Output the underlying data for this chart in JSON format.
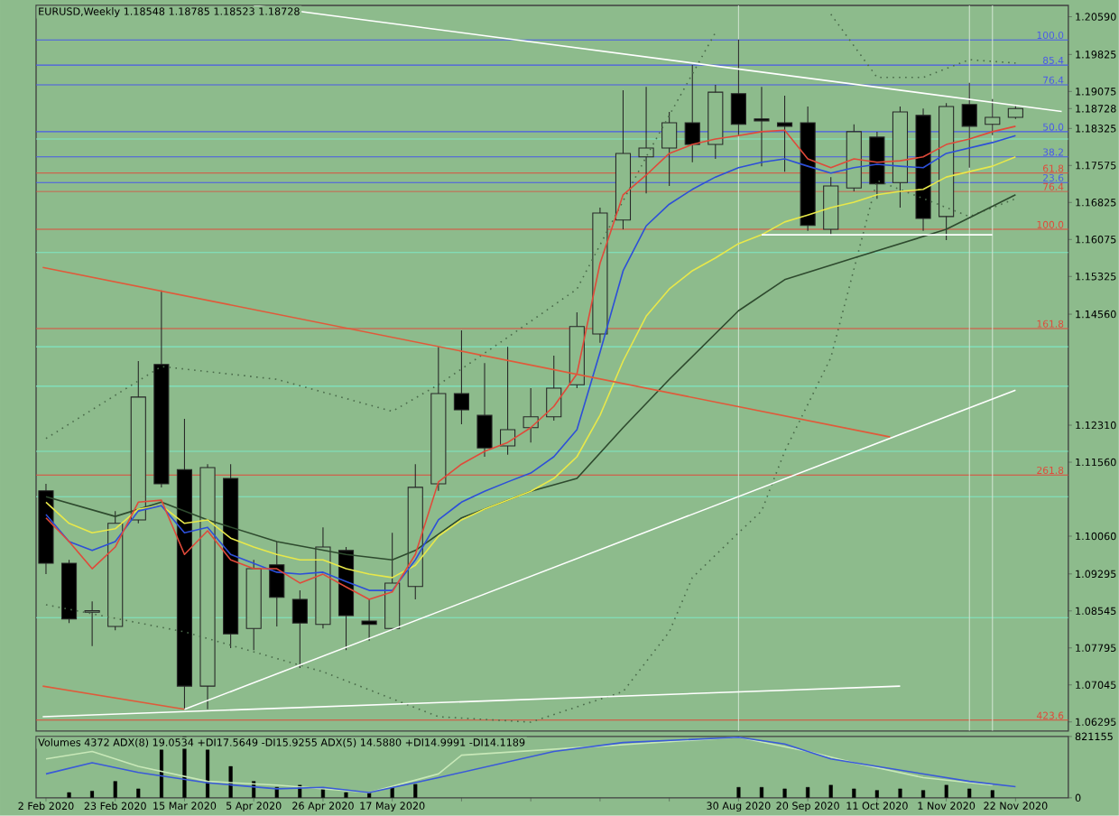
{
  "chart_data": [
    {
      "type": "candlestick",
      "title": "EURUSD,Weekly 1.18548 1.18785 1.18523 1.18728",
      "x": [
        "2020-02-02",
        "2020-02-09",
        "2020-02-16",
        "2020-02-23",
        "2020-03-01",
        "2020-03-08",
        "2020-03-15",
        "2020-03-22",
        "2020-03-29",
        "2020-04-05",
        "2020-04-12",
        "2020-04-19",
        "2020-04-26",
        "2020-05-03",
        "2020-05-10",
        "2020-05-17",
        "2020-05-24",
        "2020-05-31",
        "2020-06-07",
        "2020-06-14",
        "2020-06-21",
        "2020-06-28",
        "2020-07-05",
        "2020-07-12",
        "2020-07-19",
        "2020-07-26",
        "2020-08-02",
        "2020-08-09",
        "2020-08-16",
        "2020-08-23",
        "2020-08-30",
        "2020-09-06",
        "2020-09-13",
        "2020-09-20",
        "2020-09-27",
        "2020-10-04",
        "2020-10-11",
        "2020-10-18",
        "2020-10-25",
        "2020-11-01",
        "2020-11-08",
        "2020-11-15",
        "2020-11-22"
      ],
      "ohlc": [
        [
          1.1098,
          1.1112,
          1.0929,
          1.0951
        ],
        [
          1.0951,
          1.0958,
          1.083,
          1.0838
        ],
        [
          1.0852,
          1.0874,
          1.0783,
          1.0855
        ],
        [
          1.0823,
          1.1057,
          1.0815,
          1.1032
        ],
        [
          1.1039,
          1.1361,
          1.1032,
          1.1288
        ],
        [
          1.1354,
          1.1504,
          1.1105,
          1.1112
        ],
        [
          1.1141,
          1.1244,
          1.0655,
          1.0702
        ],
        [
          1.0702,
          1.1152,
          1.0655,
          1.1145
        ],
        [
          1.1123,
          1.1152,
          1.0779,
          1.0808
        ],
        [
          1.0819,
          1.0958,
          1.0775,
          1.094
        ],
        [
          1.0948,
          1.0995,
          1.0823,
          1.0882
        ],
        [
          1.0878,
          1.0896,
          1.0739,
          1.083
        ],
        [
          1.0827,
          1.1024,
          1.0819,
          1.0984
        ],
        [
          1.0977,
          1.0984,
          1.0775,
          1.0845
        ],
        [
          1.0834,
          1.0878,
          1.0794,
          1.0827
        ],
        [
          1.0819,
          1.1013,
          1.0815,
          1.0911
        ],
        [
          1.0904,
          1.1152,
          1.0878,
          1.1105
        ],
        [
          1.1112,
          1.139,
          1.1098,
          1.1295
        ],
        [
          1.1295,
          1.1423,
          1.1233,
          1.1262
        ],
        [
          1.1251,
          1.1357,
          1.1167,
          1.1185
        ],
        [
          1.1189,
          1.139,
          1.1171,
          1.1222
        ],
        [
          1.1226,
          1.1306,
          1.1196,
          1.1248
        ],
        [
          1.1248,
          1.1372,
          1.124,
          1.1306
        ],
        [
          1.1313,
          1.146,
          1.1306,
          1.1431
        ],
        [
          1.1416,
          1.1672,
          1.1398,
          1.1661
        ],
        [
          1.1647,
          1.191,
          1.1628,
          1.1782
        ],
        [
          1.1775,
          1.1917,
          1.1701,
          1.1793
        ],
        [
          1.1793,
          1.1866,
          1.1716,
          1.1844
        ],
        [
          1.1844,
          1.1961,
          1.1764,
          1.18
        ],
        [
          1.18,
          1.1921,
          1.1771,
          1.1906
        ],
        [
          1.1903,
          1.2013,
          1.1819,
          1.1841
        ],
        [
          1.1852,
          1.1917,
          1.1756,
          1.1848
        ],
        [
          1.1844,
          1.1899,
          1.1745,
          1.1837
        ],
        [
          1.1844,
          1.1877,
          1.1625,
          1.1636
        ],
        [
          1.1628,
          1.1734,
          1.1617,
          1.1716
        ],
        [
          1.1712,
          1.1841,
          1.1705,
          1.1826
        ],
        [
          1.1815,
          1.1826,
          1.169,
          1.172
        ],
        [
          1.1723,
          1.1877,
          1.1672,
          1.1866
        ],
        [
          1.1859,
          1.1873,
          1.1625,
          1.165
        ],
        [
          1.1654,
          1.1884,
          1.1606,
          1.1877
        ],
        [
          1.1881,
          1.1925,
          1.1753,
          1.1837
        ],
        [
          1.1841,
          1.1892,
          1.1819,
          1.1855
        ],
        [
          1.1855,
          1.1879,
          1.1852,
          1.1873
        ]
      ],
      "xlim": [
        "2020-01-30",
        "2020-12-08"
      ],
      "ylim": [
        1.0611,
        1.2082
      ],
      "yticks": [
        {
          "value": 1.2059,
          "label": "1.20590"
        },
        1.19825,
        1.19075,
        1.18325,
        1.17575,
        1.16825,
        1.16075,
        1.15325,
        {
          "value": 1.1456,
          "label": "1.14560"
        },
        {
          "value": 1.1231,
          "label": "1.12310"
        },
        {
          "value": 1.1156,
          "label": "1.11560"
        },
        {
          "value": 1.1006,
          "label": "1.10060"
        },
        1.09295,
        1.08545,
        1.07795,
        1.07045,
        1.06295,
        1.18728
      ],
      "tick_labels": "y",
      "series": [
        {
          "type": "line",
          "color": "#4a6a4a",
          "line_style": "dotted",
          "x": [
            "2020-02-02",
            "2020-03-08",
            "2020-04-12",
            "2020-05-17",
            "2020-05-31",
            "2020-06-21",
            "2020-07-12",
            "2020-08-02",
            "2020-08-16",
            "2020-08-23",
            "2020-09-06",
            "2020-09-27",
            "2020-10-11",
            "2020-10-25",
            "2020-11-08",
            "2020-11-22"
          ],
          "values": [
            1.1204,
            1.135,
            1.1324,
            1.1259,
            1.1313,
            1.1409,
            1.1507,
            1.1775,
            1.1943,
            1.2027,
            null,
            1.2064,
            1.1936,
            1.1936,
            1.1972,
            1.1965
          ]
        },
        {
          "type": "line",
          "color": "#4a6a4a",
          "line_style": "dotted",
          "x": [
            "2020-02-02",
            "2020-03-15",
            "2020-04-26",
            "2020-05-31",
            "2020-06-28",
            "2020-07-26",
            "2020-08-09",
            "2020-08-16",
            "2020-08-30",
            "2020-09-06",
            "2020-09-13",
            "2020-09-27",
            "2020-10-11",
            "2020-11-08",
            "2020-11-22"
          ],
          "values": [
            1.0867,
            1.0812,
            1.0731,
            1.064,
            1.0629,
            1.0691,
            1.0812,
            1.0922,
            1.1013,
            1.1057,
            1.1178,
            1.1368,
            1.1727,
            1.1654,
            1.169
          ]
        },
        {
          "type": "line",
          "color": "#2e4a2e",
          "x": [
            "2020-02-02",
            "2020-02-23",
            "2020-03-08",
            "2020-03-22",
            "2020-04-12",
            "2020-05-03",
            "2020-05-17",
            "2020-05-24",
            "2020-06-07",
            "2020-06-28",
            "2020-07-12",
            "2020-07-26",
            "2020-08-09",
            "2020-08-30",
            "2020-09-13",
            "2020-10-04",
            "2020-10-18",
            "2020-11-01",
            "2020-11-22"
          ],
          "values": [
            1.1086,
            1.1046,
            1.1075,
            1.1039,
            1.0995,
            1.0969,
            1.0958,
            1.0977,
            1.1043,
            1.1097,
            1.1123,
            1.1226,
            1.1324,
            1.1463,
            1.1526,
            1.157,
            1.1599,
            1.1628,
            1.1698
          ]
        },
        {
          "type": "line",
          "color": "#e8e84a",
          "values": [
            1.1075,
            1.1032,
            1.1013,
            1.1021,
            1.1061,
            1.1068,
            1.1032,
            1.1039,
            1.1002,
            1.0984,
            1.0969,
            1.0958,
            1.0958,
            1.094,
            1.0929,
            1.0922,
            1.0947,
            1.1006,
            1.1039,
            1.1061,
            1.1079,
            1.1097,
            1.1123,
            1.1167,
            1.1251,
            1.1361,
            1.1452,
            1.1507,
            1.1544,
            1.157,
            1.1599,
            1.1617,
            1.1643,
            1.1657,
            1.1672,
            1.1683,
            1.1698,
            1.1705,
            1.1709,
            1.1734,
            1.1745,
            1.1756,
            1.1775
          ]
        },
        {
          "type": "line",
          "color": "#2d4fd8",
          "values": [
            1.105,
            1.0995,
            1.0977,
            1.0995,
            1.1057,
            1.1068,
            1.1013,
            1.1024,
            1.0969,
            1.0951,
            1.0933,
            1.0929,
            1.0933,
            1.0914,
            1.0896,
            1.0896,
            1.0958,
            1.1039,
            1.1075,
            1.1097,
            1.1116,
            1.1134,
            1.1167,
            1.1222,
            1.1379,
            1.1544,
            1.1635,
            1.1679,
            1.1709,
            1.1734,
            1.1753,
            1.1764,
            1.1771,
            1.1756,
            1.1742,
            1.1753,
            1.176,
            1.1756,
            1.1753,
            1.1782,
            1.1793,
            1.1804,
            1.1818
          ]
        },
        {
          "type": "line",
          "color": "#e04a3a",
          "values": [
            1.1043,
            1.0995,
            1.094,
            1.0984,
            1.1075,
            1.1079,
            1.0969,
            1.1017,
            1.0958,
            1.094,
            1.094,
            1.0911,
            1.0929,
            1.0903,
            1.0878,
            1.0893,
            1.0969,
            1.1116,
            1.1152,
            1.1178,
            1.1196,
            1.1226,
            1.1269,
            1.1335,
            1.1559,
            1.1698,
            1.1738,
            1.1782,
            1.18,
            1.1811,
            1.1818,
            1.1826,
            1.1829,
            1.1771,
            1.1753,
            1.1771,
            1.1764,
            1.1767,
            1.1775,
            1.18,
            1.1811,
            1.1826,
            1.1837
          ]
        },
        {
          "type": "line",
          "color": "#ffffff",
          "x": [
            "2020-04-05",
            "2020-12-06"
          ],
          "values": [
            1.2082,
            1.1867
          ]
        },
        {
          "type": "line",
          "color": "#e05a3a",
          "x": [
            "2020-02-01",
            "2020-10-15"
          ],
          "values": [
            1.1551,
            1.1207
          ]
        },
        {
          "type": "line",
          "color": "#e05a3a",
          "x": [
            "2020-02-01",
            "2020-03-15"
          ],
          "values": [
            1.0702,
            1.0655
          ]
        },
        {
          "type": "line",
          "color": "#ffffff",
          "x": [
            "2020-03-15",
            "2020-11-22"
          ],
          "values": [
            1.0655,
            1.1302
          ]
        },
        {
          "type": "line",
          "color": "#ffffff",
          "x": [
            "2020-02-01",
            "2020-10-18"
          ],
          "values": [
            1.064,
            1.0702
          ]
        },
        {
          "type": "line",
          "color": "#ffffff",
          "x": [
            "2020-09-06",
            "2020-11-15"
          ],
          "values": [
            1.1617,
            1.1617
          ]
        }
      ],
      "ref_lines": [
        {
          "axis": "y",
          "value": 1.2012,
          "color": "#4a5ae8"
        },
        {
          "axis": "y",
          "value": 1.1961,
          "color": "#4a5ae8"
        },
        {
          "axis": "y",
          "value": 1.1921,
          "color": "#4a5ae8"
        },
        {
          "axis": "y",
          "value": 1.1826,
          "color": "#4a5ae8"
        },
        {
          "axis": "y",
          "value": 1.1775,
          "color": "#4a5ae8"
        },
        {
          "axis": "y",
          "value": 1.1723,
          "color": "#4a5ae8"
        },
        {
          "axis": "y",
          "value": 1.1742,
          "color": "#e04a3a"
        },
        {
          "axis": "y",
          "value": 1.1705,
          "color": "#e04a3a"
        },
        {
          "axis": "y",
          "value": 1.1628,
          "color": "#e04a3a"
        },
        {
          "axis": "y",
          "value": 1.1427,
          "color": "#e04a3a"
        },
        {
          "axis": "y",
          "value": 1.113,
          "color": "#e04a3a"
        },
        {
          "axis": "y",
          "value": 1.0633,
          "color": "#e04a3a"
        },
        {
          "axis": "y",
          "value": 1.1811,
          "color": "#7fe7c4"
        },
        {
          "axis": "y",
          "value": 1.1581,
          "color": "#7fe7c4"
        },
        {
          "axis": "y",
          "value": 1.139,
          "color": "#7fe7c4"
        },
        {
          "axis": "y",
          "value": 1.131,
          "color": "#7fe7c4"
        },
        {
          "axis": "y",
          "value": 1.1178,
          "color": "#7fe7c4"
        },
        {
          "axis": "y",
          "value": 1.1086,
          "color": "#7fe7c4"
        },
        {
          "axis": "y",
          "value": 1.0841,
          "color": "#7fe7c4"
        },
        {
          "axis": "x",
          "value": "2020-08-30",
          "color": "#d0e4d0"
        },
        {
          "axis": "x",
          "value": "2020-11-08",
          "color": "#d0e4d0"
        },
        {
          "axis": "x",
          "value": "2020-11-15",
          "color": "#d0e4d0"
        }
      ],
      "annotations": [
        {
          "text": "100.0",
          "x": "2020-12-07",
          "y": 1.2012
        },
        {
          "text": "85.4",
          "x": "2020-12-07",
          "y": 1.1961
        },
        {
          "text": "76.4",
          "x": "2020-12-07",
          "y": 1.1921
        },
        {
          "text": "50.0",
          "x": "2020-12-07",
          "y": 1.1826
        },
        {
          "text": "38.2",
          "x": "2020-12-07",
          "y": 1.1775
        },
        {
          "text": "23.6",
          "x": "2020-12-07",
          "y": 1.1723
        },
        {
          "text": "61.8",
          "x": "2020-12-07",
          "y": 1.1742
        },
        {
          "text": "76.4",
          "x": "2020-12-07",
          "y": 1.1705
        },
        {
          "text": "100.0",
          "x": "2020-12-07",
          "y": 1.1628
        },
        {
          "text": "161.8",
          "x": "2020-12-07",
          "y": 1.1427
        },
        {
          "text": "261.8",
          "x": "2020-12-07",
          "y": 1.113
        },
        {
          "text": "423.6",
          "x": "2020-12-07",
          "y": 1.0633
        }
      ]
    },
    {
      "type": "bar",
      "title": "Volumes 4372  ADX(8) 19.0534 +DI17.5649 -DI15.9255  ADX(5) 14.5880 +DI14.9991 -DI14.1189",
      "xlim": [
        "2020-01-30",
        "2020-12-08"
      ],
      "ylim": [
        0,
        821155
      ],
      "yticks": [
        0,
        821155
      ],
      "xticks": [
        {
          "value": "2020-02-02",
          "label": "2 Feb 2020"
        },
        {
          "value": "2020-02-23",
          "label": "23 Feb 2020"
        },
        {
          "value": "2020-03-15",
          "label": "15 Mar 2020"
        },
        {
          "value": "2020-04-05",
          "label": "5 Apr 2020"
        },
        {
          "value": "2020-04-26",
          "label": "26 Apr 2020"
        },
        {
          "value": "2020-05-17",
          "label": "17 May 2020"
        },
        {
          "value": "2020-06-07",
          "label": null
        },
        {
          "value": "2020-06-28",
          "label": null
        },
        {
          "value": "2020-07-19",
          "label": null
        },
        {
          "value": "2020-08-09",
          "label": null
        },
        {
          "value": "2020-08-30",
          "label": "30 Aug 2020"
        },
        {
          "value": "2020-09-20",
          "label": "20 Sep 2020"
        },
        {
          "value": "2020-10-11",
          "label": "11 Oct 2020"
        },
        {
          "value": "2020-11-01",
          "label": "1 Nov 2020"
        },
        {
          "value": "2020-11-22",
          "label": "22 Nov 2020"
        }
      ],
      "series": [
        {
          "type": "bar",
          "color": "#000000",
          "x": [
            "2020-02-09",
            "2020-02-16",
            "2020-02-23",
            "2020-03-01",
            "2020-03-08",
            "2020-03-15",
            "2020-03-22",
            "2020-03-29",
            "2020-04-05",
            "2020-04-12",
            "2020-04-19",
            "2020-04-26",
            "2020-05-03",
            "2020-05-10",
            "2020-05-17",
            "2020-05-24",
            "2020-08-30",
            "2020-09-06",
            "2020-09-13",
            "2020-09-20",
            "2020-09-27",
            "2020-10-04",
            "2020-10-11",
            "2020-10-18",
            "2020-10-25",
            "2020-11-01",
            "2020-11-08",
            "2020-11-15"
          ],
          "values": [
            70000,
            90000,
            220000,
            120000,
            640000,
            820000,
            640000,
            420000,
            220000,
            140000,
            170000,
            120000,
            70000,
            70000,
            140000,
            180000,
            140000,
            140000,
            120000,
            140000,
            170000,
            120000,
            100000,
            120000,
            100000,
            170000,
            120000,
            100000
          ]
        },
        {
          "type": "line",
          "color": "#c8e8b8",
          "x": [
            "2020-02-02",
            "2020-02-16",
            "2020-03-01",
            "2020-03-22",
            "2020-04-12",
            "2020-05-10",
            "2020-05-31",
            "2020-06-07",
            "2020-08-30",
            "2020-09-20",
            "2020-10-04",
            "2020-10-25",
            "2020-11-15"
          ],
          "values": [
            520000,
            620000,
            420000,
            220000,
            170000,
            70000,
            320000,
            570000,
            810000,
            620000,
            470000,
            270000,
            170000
          ]
        },
        {
          "type": "line",
          "color": "#3a5ad8",
          "x": [
            "2020-02-02",
            "2020-02-16",
            "2020-03-01",
            "2020-03-22",
            "2020-04-12",
            "2020-04-26",
            "2020-05-10",
            "2020-05-31",
            "2020-07-05",
            "2020-07-26",
            "2020-08-30",
            "2020-09-13",
            "2020-09-27",
            "2020-10-18",
            "2020-11-08",
            "2020-11-22"
          ],
          "values": [
            320000,
            470000,
            340000,
            200000,
            120000,
            140000,
            70000,
            270000,
            620000,
            740000,
            810000,
            720000,
            520000,
            370000,
            220000,
            150000
          ]
        }
      ]
    }
  ]
}
